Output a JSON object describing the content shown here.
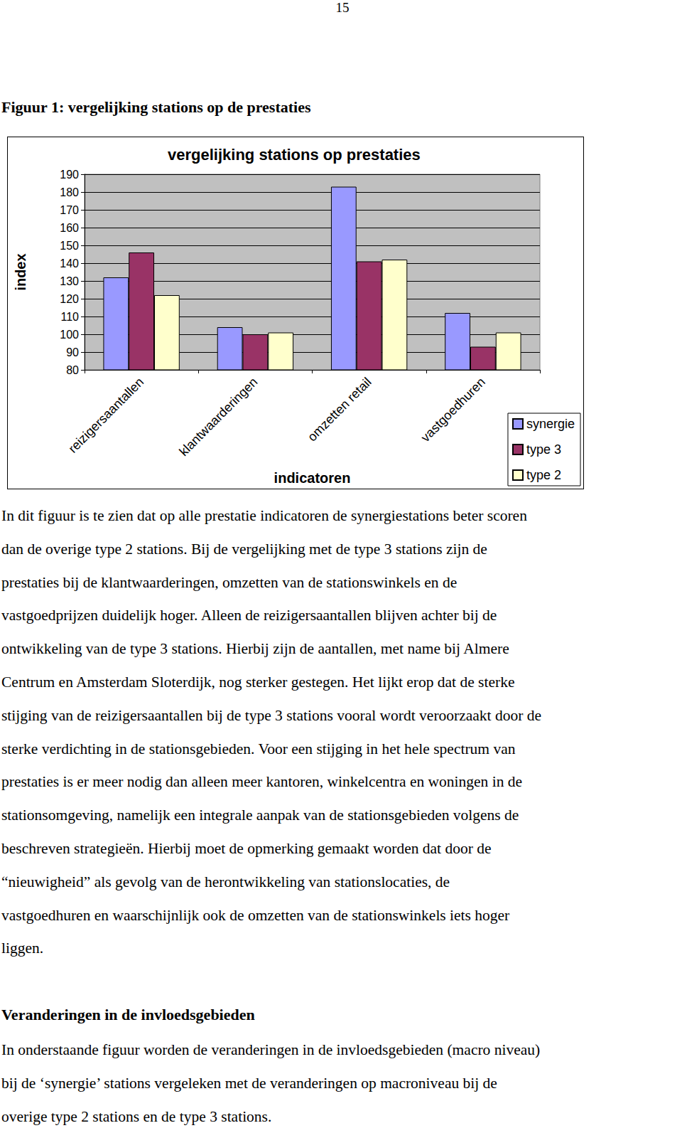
{
  "page_number": "15",
  "figure_caption": "Figuur 1: vergelijking stations op de prestaties",
  "chart_data": {
    "type": "bar",
    "title": "vergelijking stations op prestaties",
    "x_label": "indicatoren",
    "y_label": "index",
    "categories": [
      "reizigersaantallen",
      "klantwaarderingen",
      "omzetten retail",
      "vastgoedhuren"
    ],
    "series": [
      {
        "name": "synergie",
        "color": "#9999ff",
        "values": [
          132,
          104,
          183,
          112
        ]
      },
      {
        "name": "type 3",
        "color": "#993366",
        "values": [
          146,
          100,
          141,
          93
        ]
      },
      {
        "name": "type 2",
        "color": "#ffffcc",
        "values": [
          122,
          101,
          142,
          101
        ]
      }
    ],
    "ylim": [
      80,
      190
    ],
    "yticks": [
      80,
      90,
      100,
      110,
      120,
      130,
      140,
      150,
      160,
      170,
      180,
      190
    ],
    "grid": true,
    "legend": "lower right"
  },
  "paragraphs": [
    {
      "lines": [
        "In dit figuur is te zien dat op alle prestatie indicatoren de synergiestations beter scoren",
        "dan de overige type 2 stations. Bij de vergelijking met de type 3 stations zijn de",
        "prestaties bij de klantwaarderingen, omzetten van de stationswinkels en de",
        "vastgoedprijzen duidelijk hoger. Alleen de reizigersaantallen blijven achter bij de",
        "ontwikkeling van de type 3 stations. Hierbij zijn de aantallen, met name bij Almere",
        "Centrum en Amsterdam Sloterdijk, nog sterker gestegen. Het lijkt erop dat de sterke",
        "stijging van de reizigersaantallen bij de type 3 stations vooral wordt veroorzaakt door de",
        "sterke verdichting in de stationsgebieden. Voor een stijging in het hele spectrum van",
        "prestaties is er meer nodig dan alleen meer kantoren, winkelcentra en woningen in de",
        "stationsomgeving, namelijk een integrale aanpak van de stationsgebieden volgens de",
        "beschreven strategieën. Hierbij moet de opmerking gemaakt worden dat door de",
        "“nieuwigheid” als gevolg van de herontwikkeling van stationslocaties, de",
        "vastgoedhuren en waarschijnlijk ook de omzetten van de stationswinkels iets hoger",
        "liggen."
      ]
    }
  ],
  "section_heading": "Veranderingen in de invloedsgebieden",
  "section_paragraph": {
    "lines": [
      "In onderstaande figuur worden de veranderingen in de invloedsgebieden (macro niveau)",
      "bij de ‘synergie’ stations vergeleken met de veranderingen op macroniveau bij de",
      "overige type 2 stations en de type 3 stations."
    ]
  }
}
